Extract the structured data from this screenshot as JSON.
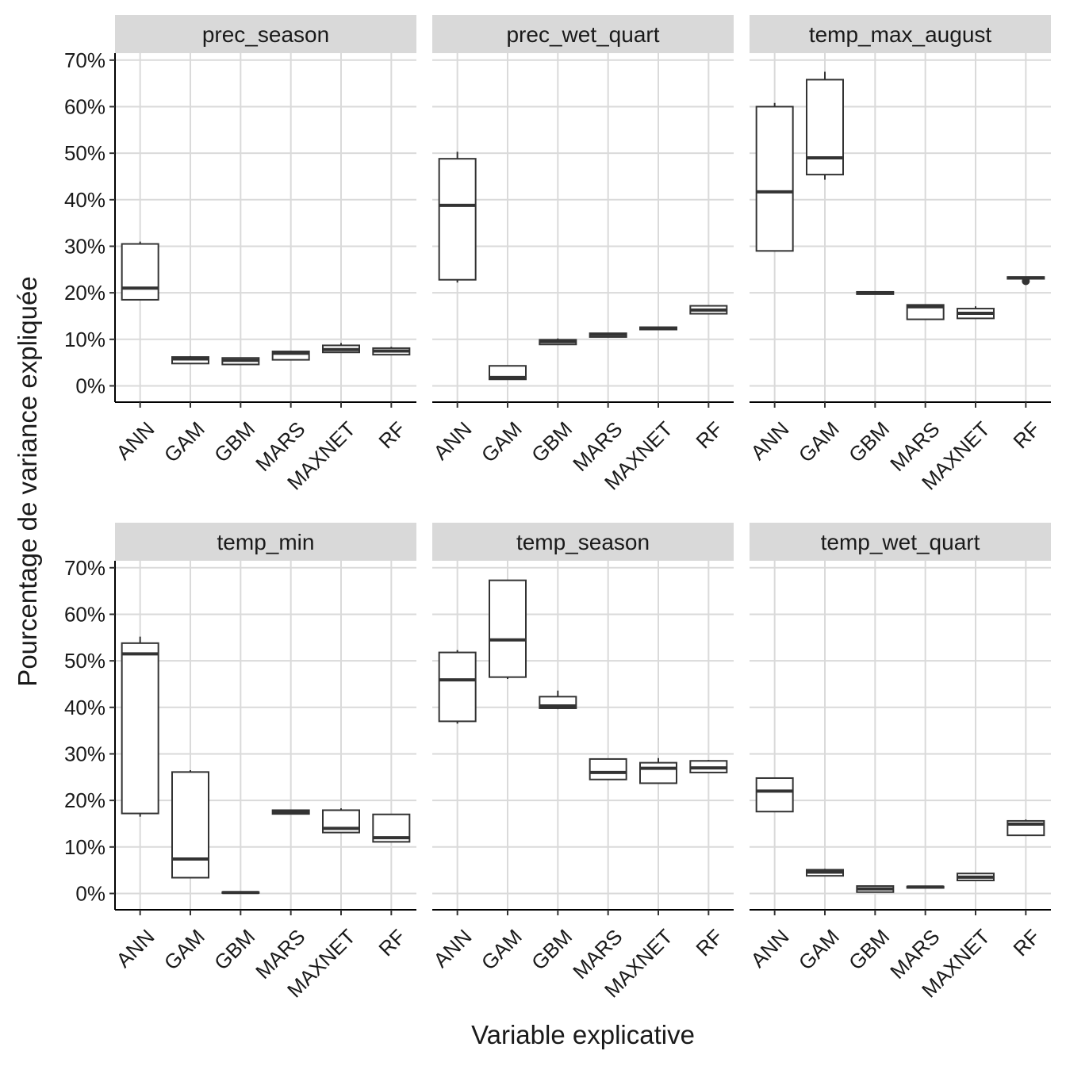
{
  "chart_data": {
    "type": "boxplot",
    "facet_layout": "2 rows x 3 columns",
    "xlabel": "Variable explicative",
    "ylabel": "Pourcentage de variance expliquée",
    "y_unit": "%",
    "ylim": [
      -3.5,
      71.5
    ],
    "y_ticks": [
      0,
      10,
      20,
      30,
      40,
      50,
      60,
      70
    ],
    "y_tick_labels": [
      "0%",
      "10%",
      "20%",
      "30%",
      "40%",
      "50%",
      "60%",
      "70%"
    ],
    "categories": [
      "ANN",
      "GAM",
      "GBM",
      "MARS",
      "MAXNET",
      "RF"
    ],
    "grid": true,
    "panels": [
      {
        "title": "prec_season",
        "boxes": [
          {
            "category": "ANN",
            "min": 18.5,
            "q1": 18.5,
            "median": 21,
            "q3": 30.5,
            "max": 31
          },
          {
            "category": "GAM",
            "min": 4.8,
            "q1": 4.8,
            "median": 5.8,
            "q3": 6.2,
            "max": 6.4
          },
          {
            "category": "GBM",
            "min": 4.6,
            "q1": 4.6,
            "median": 5.5,
            "q3": 6,
            "max": 6.1
          },
          {
            "category": "MARS",
            "min": 5.6,
            "q1": 5.6,
            "median": 7,
            "q3": 7.4,
            "max": 7.5
          },
          {
            "category": "MAXNET",
            "min": 7.2,
            "q1": 7.2,
            "median": 7.8,
            "q3": 8.7,
            "max": 9.2
          },
          {
            "category": "RF",
            "min": 6.7,
            "q1": 6.7,
            "median": 7.5,
            "q3": 8.1,
            "max": 8.4
          }
        ]
      },
      {
        "title": "prec_wet_quart",
        "boxes": [
          {
            "category": "ANN",
            "min": 22.2,
            "q1": 22.8,
            "median": 38.8,
            "q3": 48.8,
            "max": 50.3
          },
          {
            "category": "GAM",
            "min": 1.4,
            "q1": 1.4,
            "median": 1.8,
            "q3": 4.3,
            "max": 4.3
          },
          {
            "category": "GBM",
            "min": 8.9,
            "q1": 8.9,
            "median": 9.5,
            "q3": 9.9,
            "max": 10.2
          },
          {
            "category": "MARS",
            "min": 10.5,
            "q1": 10.5,
            "median": 11,
            "q3": 11.3,
            "max": 11.4
          },
          {
            "category": "MAXNET",
            "min": 12.1,
            "q1": 12.1,
            "median": 12.4,
            "q3": 12.6,
            "max": 12.7
          },
          {
            "category": "RF",
            "min": 15.5,
            "q1": 15.5,
            "median": 16.3,
            "q3": 17.2,
            "max": 17.3
          }
        ]
      },
      {
        "title": "temp_max_august",
        "boxes": [
          {
            "category": "ANN",
            "min": 29,
            "q1": 29,
            "median": 41.7,
            "q3": 60,
            "max": 60.8
          },
          {
            "category": "GAM",
            "min": 44.3,
            "q1": 45.4,
            "median": 49,
            "q3": 65.8,
            "max": 67.5
          },
          {
            "category": "GBM",
            "min": 19.7,
            "q1": 19.7,
            "median": 20,
            "q3": 20.2,
            "max": 20.3
          },
          {
            "category": "MARS",
            "min": 14.3,
            "q1": 14.3,
            "median": 17,
            "q3": 17.4,
            "max": 17.5
          },
          {
            "category": "MAXNET",
            "min": 14.5,
            "q1": 14.5,
            "median": 15.6,
            "q3": 16.6,
            "max": 17.1
          },
          {
            "category": "RF",
            "min": 23,
            "q1": 23,
            "median": 23.2,
            "q3": 23.4,
            "max": 23.5,
            "outliers": [
              22.5
            ]
          }
        ]
      },
      {
        "title": "temp_min",
        "boxes": [
          {
            "category": "ANN",
            "min": 16.5,
            "q1": 17.2,
            "median": 51.5,
            "q3": 53.8,
            "max": 55.2
          },
          {
            "category": "GAM",
            "min": 3.4,
            "q1": 3.4,
            "median": 7.4,
            "q3": 26.1,
            "max": 26.5
          },
          {
            "category": "GBM",
            "min": 0.1,
            "q1": 0.1,
            "median": 0.2,
            "q3": 0.3,
            "max": 0.3
          },
          {
            "category": "MARS",
            "min": 17.1,
            "q1": 17.1,
            "median": 17.5,
            "q3": 17.9,
            "max": 18
          },
          {
            "category": "MAXNET",
            "min": 13.1,
            "q1": 13.1,
            "median": 14,
            "q3": 17.9,
            "max": 18.3
          },
          {
            "category": "RF",
            "min": 11.1,
            "q1": 11.1,
            "median": 12,
            "q3": 17,
            "max": 17
          }
        ]
      },
      {
        "title": "temp_season",
        "boxes": [
          {
            "category": "ANN",
            "min": 36.5,
            "q1": 37,
            "median": 45.9,
            "q3": 51.8,
            "max": 52.3
          },
          {
            "category": "GAM",
            "min": 46.1,
            "q1": 46.5,
            "median": 54.5,
            "q3": 67.3,
            "max": 67.3
          },
          {
            "category": "GBM",
            "min": 39.6,
            "q1": 39.8,
            "median": 40.3,
            "q3": 42.3,
            "max": 43.6
          },
          {
            "category": "MARS",
            "min": 24.5,
            "q1": 24.5,
            "median": 26,
            "q3": 28.9,
            "max": 28.9
          },
          {
            "category": "MAXNET",
            "min": 23.7,
            "q1": 23.7,
            "median": 26.9,
            "q3": 28.1,
            "max": 29.1
          },
          {
            "category": "RF",
            "min": 26,
            "q1": 26,
            "median": 27,
            "q3": 28.5,
            "max": 28.7
          }
        ]
      },
      {
        "title": "temp_wet_quart",
        "boxes": [
          {
            "category": "ANN",
            "min": 17.5,
            "q1": 17.6,
            "median": 22,
            "q3": 24.8,
            "max": 24.8
          },
          {
            "category": "GAM",
            "min": 3.8,
            "q1": 3.8,
            "median": 4.6,
            "q3": 5.1,
            "max": 5.3
          },
          {
            "category": "GBM",
            "min": 0.3,
            "q1": 0.3,
            "median": 1,
            "q3": 1.6,
            "max": 1.6
          },
          {
            "category": "MARS",
            "min": 1.2,
            "q1": 1.2,
            "median": 1.4,
            "q3": 1.5,
            "max": 1.5
          },
          {
            "category": "MAXNET",
            "min": 2.8,
            "q1": 2.8,
            "median": 3.5,
            "q3": 4.3,
            "max": 4.4
          },
          {
            "category": "RF",
            "min": 12.5,
            "q1": 12.5,
            "median": 14.9,
            "q3": 15.6,
            "max": 15.9
          }
        ]
      }
    ]
  }
}
